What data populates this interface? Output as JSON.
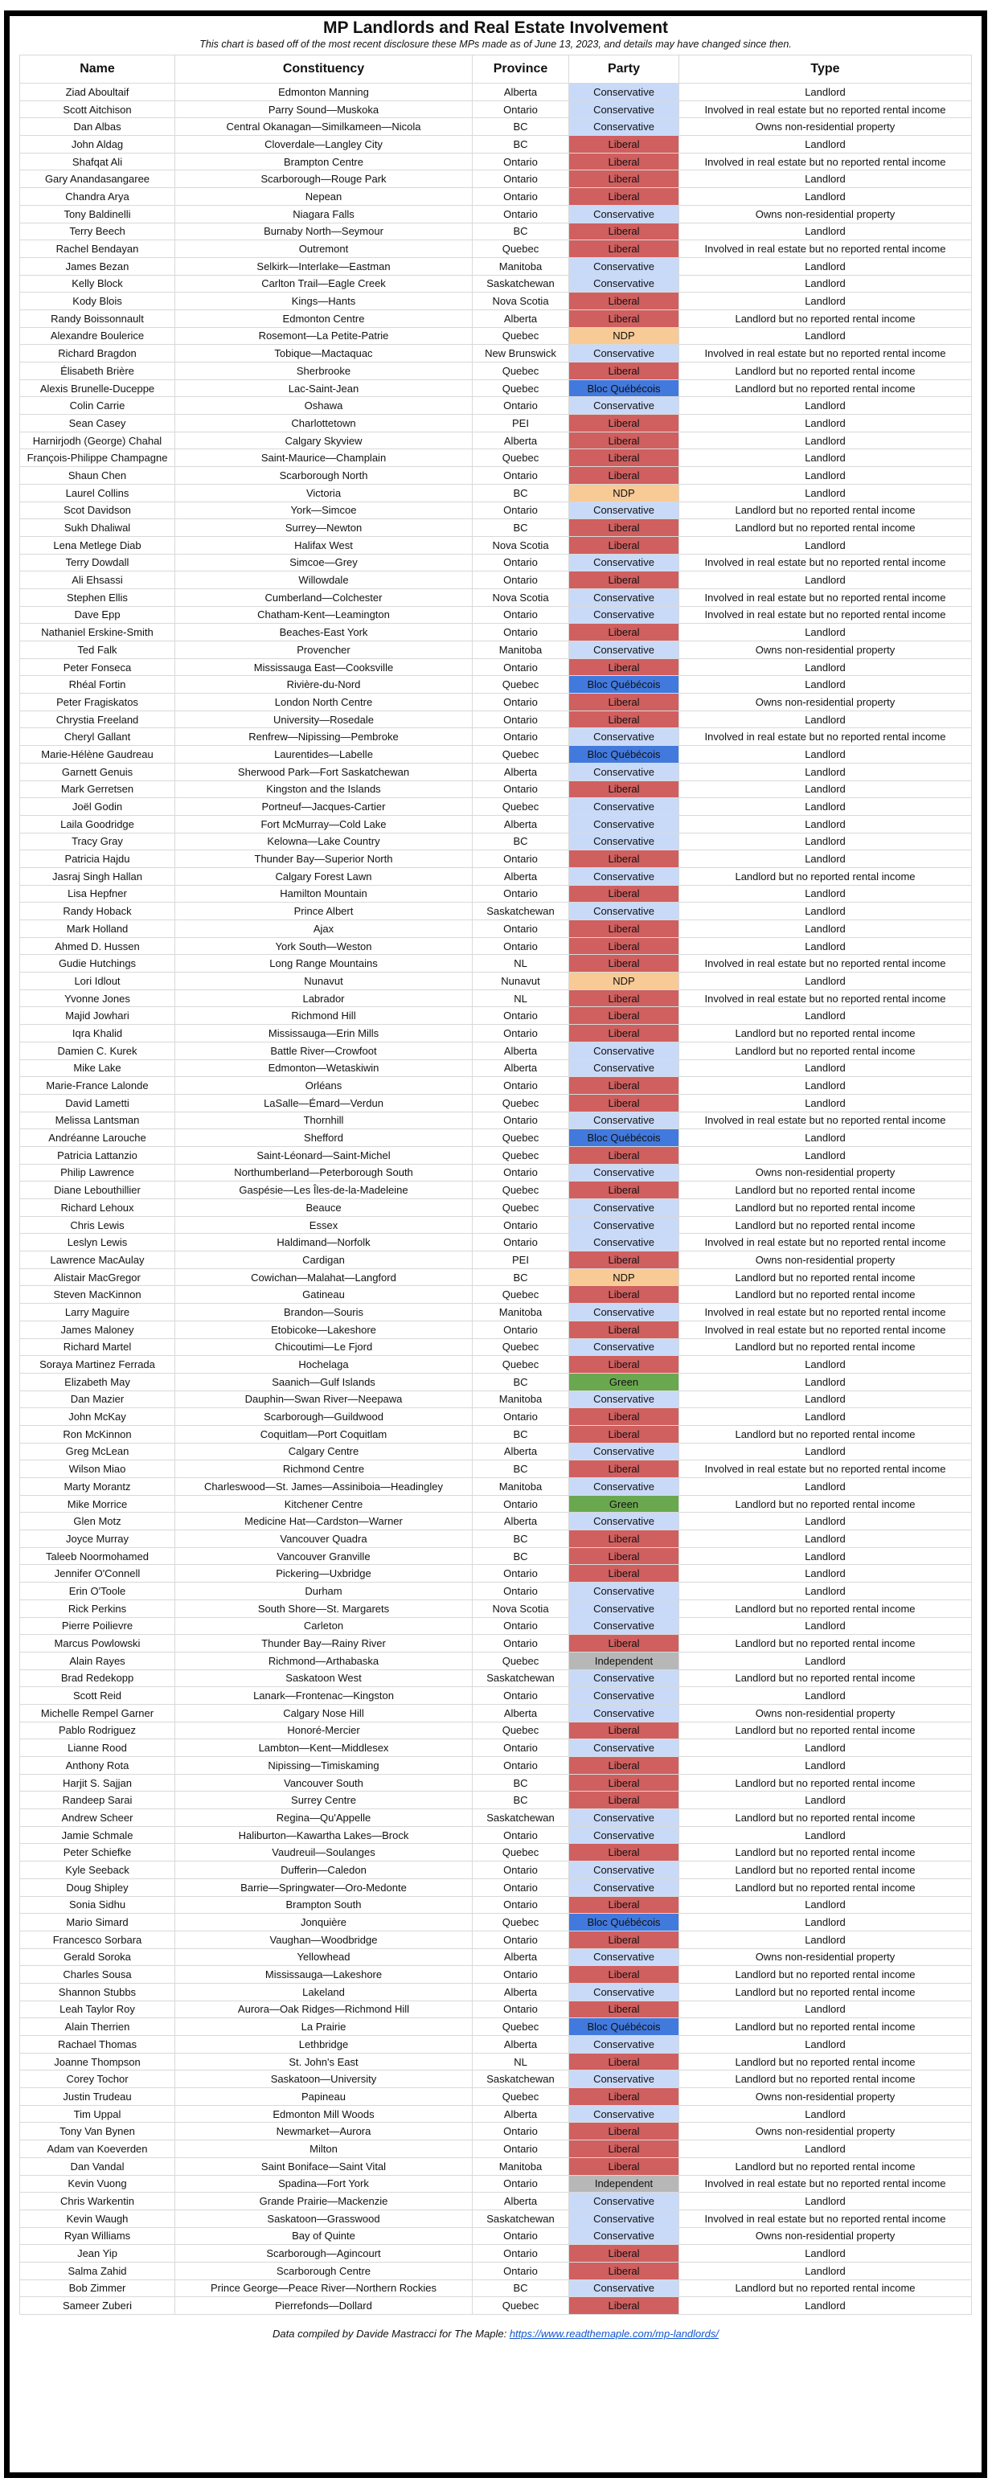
{
  "title": "MP Landlords and Real Estate Involvement",
  "subtitle": "This chart is based off of the most recent disclosure these MPs made as of June 13, 2023, and details may have changed since then.",
  "party_colors": {
    "Conservative": "#c9daf8",
    "Liberal": "#d05f5f",
    "NDP": "#f8ca96",
    "Bloc Québécois": "#4279dd",
    "Green": "#6aa84f",
    "Independent": "#b7b7b7"
  },
  "footer": {
    "prefix": "Data compiled by Davide Mastracci for The Maple: ",
    "link": "https://www.readthemaple.com/mp-landlords/"
  },
  "chart_data": {
    "type": "table",
    "title": "MP Landlords and Real Estate Involvement",
    "subtitle": "This chart is based off of the most recent disclosure these MPs made as of June 13, 2023, and details may have changed since then.",
    "columns": [
      "Name",
      "Constituency",
      "Province",
      "Party",
      "Type"
    ],
    "rows": [
      [
        "Ziad Aboultaif",
        "Edmonton Manning",
        "Alberta",
        "Conservative",
        "Landlord"
      ],
      [
        "Scott Aitchison",
        "Parry Sound—Muskoka",
        "Ontario",
        "Conservative",
        "Involved in real estate but no reported rental income"
      ],
      [
        "Dan Albas",
        "Central Okanagan—Similkameen—Nicola",
        "BC",
        "Conservative",
        "Owns non-residential property"
      ],
      [
        "John Aldag",
        "Cloverdale—Langley City",
        "BC",
        "Liberal",
        "Landlord"
      ],
      [
        "Shafqat Ali",
        "Brampton Centre",
        "Ontario",
        "Liberal",
        "Involved in real estate but no reported rental income"
      ],
      [
        "Gary Anandasangaree",
        "Scarborough—Rouge Park",
        "Ontario",
        "Liberal",
        "Landlord"
      ],
      [
        "Chandra Arya",
        "Nepean",
        "Ontario",
        "Liberal",
        "Landlord"
      ],
      [
        "Tony Baldinelli",
        "Niagara Falls",
        "Ontario",
        "Conservative",
        "Owns non-residential property"
      ],
      [
        "Terry Beech",
        "Burnaby North—Seymour",
        "BC",
        "Liberal",
        "Landlord"
      ],
      [
        "Rachel Bendayan",
        "Outremont",
        "Quebec",
        "Liberal",
        "Involved in real estate but no reported rental income"
      ],
      [
        "James Bezan",
        "Selkirk—Interlake—Eastman",
        "Manitoba",
        "Conservative",
        "Landlord"
      ],
      [
        "Kelly Block",
        "Carlton Trail—Eagle Creek",
        "Saskatchewan",
        "Conservative",
        "Landlord"
      ],
      [
        "Kody Blois",
        "Kings—Hants",
        "Nova Scotia",
        "Liberal",
        "Landlord"
      ],
      [
        "Randy Boissonnault",
        "Edmonton Centre",
        "Alberta",
        "Liberal",
        "Landlord but no reported rental income"
      ],
      [
        "Alexandre Boulerice",
        "Rosemont—La Petite-Patrie",
        "Quebec",
        "NDP",
        "Landlord"
      ],
      [
        "Richard Bragdon",
        "Tobique—Mactaquac",
        "New Brunswick",
        "Conservative",
        "Involved in real estate but no reported rental income"
      ],
      [
        "Élisabeth Brière",
        "Sherbrooke",
        "Quebec",
        "Liberal",
        "Landlord but no reported rental income"
      ],
      [
        "Alexis Brunelle-Duceppe",
        "Lac-Saint-Jean",
        "Quebec",
        "Bloc Québécois",
        "Landlord but no reported rental income"
      ],
      [
        "Colin Carrie",
        "Oshawa",
        "Ontario",
        "Conservative",
        "Landlord"
      ],
      [
        "Sean Casey",
        "Charlottetown",
        "PEI",
        "Liberal",
        "Landlord"
      ],
      [
        "Harnirjodh (George) Chahal",
        "Calgary Skyview",
        "Alberta",
        "Liberal",
        "Landlord"
      ],
      [
        "François-Philippe Champagne",
        "Saint-Maurice—Champlain",
        "Quebec",
        "Liberal",
        "Landlord"
      ],
      [
        "Shaun Chen",
        "Scarborough North",
        "Ontario",
        "Liberal",
        "Landlord"
      ],
      [
        "Laurel Collins",
        "Victoria",
        "BC",
        "NDP",
        "Landlord"
      ],
      [
        "Scot Davidson",
        "York—Simcoe",
        "Ontario",
        "Conservative",
        "Landlord but no reported rental income"
      ],
      [
        "Sukh Dhaliwal",
        "Surrey—Newton",
        "BC",
        "Liberal",
        "Landlord but no reported rental income"
      ],
      [
        "Lena Metlege Diab",
        "Halifax West",
        "Nova Scotia",
        "Liberal",
        "Landlord"
      ],
      [
        "Terry Dowdall",
        "Simcoe—Grey",
        "Ontario",
        "Conservative",
        "Involved in real estate but no reported rental income"
      ],
      [
        "Ali Ehsassi",
        "Willowdale",
        "Ontario",
        "Liberal",
        "Landlord"
      ],
      [
        "Stephen Ellis",
        "Cumberland—Colchester",
        "Nova Scotia",
        "Conservative",
        "Involved in real estate but no reported rental income"
      ],
      [
        "Dave Epp",
        "Chatham-Kent—Leamington",
        "Ontario",
        "Conservative",
        "Involved in real estate but no reported rental income"
      ],
      [
        "Nathaniel Erskine-Smith",
        "Beaches-East York",
        "Ontario",
        "Liberal",
        "Landlord"
      ],
      [
        "Ted Falk",
        "Provencher",
        "Manitoba",
        "Conservative",
        "Owns non-residential property"
      ],
      [
        "Peter Fonseca",
        "Mississauga East—Cooksville",
        "Ontario",
        "Liberal",
        "Landlord"
      ],
      [
        "Rhéal Fortin",
        "Rivière-du-Nord",
        "Quebec",
        "Bloc Québécois",
        "Landlord"
      ],
      [
        "Peter Fragiskatos",
        "London North Centre",
        "Ontario",
        "Liberal",
        "Owns non-residential property"
      ],
      [
        "Chrystia Freeland",
        "University—Rosedale",
        "Ontario",
        "Liberal",
        "Landlord"
      ],
      [
        "Cheryl Gallant",
        "Renfrew—Nipissing—Pembroke",
        "Ontario",
        "Conservative",
        "Involved in real estate but no reported rental income"
      ],
      [
        "Marie-Hélène Gaudreau",
        "Laurentides—Labelle",
        "Quebec",
        "Bloc Québécois",
        "Landlord"
      ],
      [
        "Garnett Genuis",
        "Sherwood Park—Fort Saskatchewan",
        "Alberta",
        "Conservative",
        "Landlord"
      ],
      [
        "Mark Gerretsen",
        "Kingston and the Islands",
        "Ontario",
        "Liberal",
        "Landlord"
      ],
      [
        "Joël Godin",
        "Portneuf—Jacques-Cartier",
        "Quebec",
        "Conservative",
        "Landlord"
      ],
      [
        "Laila Goodridge",
        "Fort McMurray—Cold Lake",
        "Alberta",
        "Conservative",
        "Landlord"
      ],
      [
        "Tracy Gray",
        "Kelowna—Lake Country",
        "BC",
        "Conservative",
        "Landlord"
      ],
      [
        "Patricia Hajdu",
        "Thunder Bay—Superior North",
        "Ontario",
        "Liberal",
        "Landlord"
      ],
      [
        "Jasraj Singh Hallan",
        "Calgary Forest Lawn",
        "Alberta",
        "Conservative",
        "Landlord but no reported rental income"
      ],
      [
        "Lisa Hepfner",
        "Hamilton Mountain",
        "Ontario",
        "Liberal",
        "Landlord"
      ],
      [
        "Randy Hoback",
        "Prince Albert",
        "Saskatchewan",
        "Conservative",
        "Landlord"
      ],
      [
        "Mark Holland",
        "Ajax",
        "Ontario",
        "Liberal",
        "Landlord"
      ],
      [
        "Ahmed D. Hussen",
        "York South—Weston",
        "Ontario",
        "Liberal",
        "Landlord"
      ],
      [
        "Gudie Hutchings",
        "Long Range Mountains",
        "NL",
        "Liberal",
        "Involved in real estate but no reported rental income"
      ],
      [
        "Lori Idlout",
        "Nunavut",
        "Nunavut",
        "NDP",
        "Landlord"
      ],
      [
        "Yvonne Jones",
        "Labrador",
        "NL",
        "Liberal",
        "Involved in real estate but no reported rental income"
      ],
      [
        "Majid Jowhari",
        "Richmond Hill",
        "Ontario",
        "Liberal",
        "Landlord"
      ],
      [
        "Iqra Khalid",
        "Mississauga—Erin Mills",
        "Ontario",
        "Liberal",
        "Landlord but no reported rental income"
      ],
      [
        "Damien C. Kurek",
        "Battle River—Crowfoot",
        "Alberta",
        "Conservative",
        "Landlord but no reported rental income"
      ],
      [
        "Mike Lake",
        "Edmonton—Wetaskiwin",
        "Alberta",
        "Conservative",
        "Landlord"
      ],
      [
        "Marie-France Lalonde",
        "Orléans",
        "Ontario",
        "Liberal",
        "Landlord"
      ],
      [
        "David Lametti",
        "LaSalle—Émard—Verdun",
        "Quebec",
        "Liberal",
        "Landlord"
      ],
      [
        "Melissa Lantsman",
        "Thornhill",
        "Ontario",
        "Conservative",
        "Involved in real estate but no reported rental income"
      ],
      [
        "Andréanne Larouche",
        "Shefford",
        "Quebec",
        "Bloc Québécois",
        "Landlord"
      ],
      [
        "Patricia Lattanzio",
        "Saint-Léonard—Saint-Michel",
        "Quebec",
        "Liberal",
        "Landlord"
      ],
      [
        "Philip Lawrence",
        "Northumberland—Peterborough South",
        "Ontario",
        "Conservative",
        "Owns non-residential property"
      ],
      [
        "Diane Lebouthillier",
        "Gaspésie—Les Îles-de-la-Madeleine",
        "Quebec",
        "Liberal",
        "Landlord but no reported rental income"
      ],
      [
        "Richard Lehoux",
        "Beauce",
        "Quebec",
        "Conservative",
        "Landlord but no reported rental income"
      ],
      [
        "Chris Lewis",
        "Essex",
        "Ontario",
        "Conservative",
        "Landlord but no reported rental income"
      ],
      [
        "Leslyn Lewis",
        "Haldimand—Norfolk",
        "Ontario",
        "Conservative",
        "Involved in real estate but no reported rental income"
      ],
      [
        "Lawrence MacAulay",
        "Cardigan",
        "PEI",
        "Liberal",
        "Owns non-residential property"
      ],
      [
        "Alistair MacGregor",
        "Cowichan—Malahat—Langford",
        "BC",
        "NDP",
        "Landlord but no reported rental income"
      ],
      [
        "Steven MacKinnon",
        "Gatineau",
        "Quebec",
        "Liberal",
        "Landlord but no reported rental income"
      ],
      [
        "Larry Maguire",
        "Brandon—Souris",
        "Manitoba",
        "Conservative",
        "Involved in real estate but no reported rental income"
      ],
      [
        "James Maloney",
        "Etobicoke—Lakeshore",
        "Ontario",
        "Liberal",
        "Involved in real estate but no reported rental income"
      ],
      [
        "Richard Martel",
        "Chicoutimi—Le Fjord",
        "Quebec",
        "Conservative",
        "Landlord but no reported rental income"
      ],
      [
        "Soraya Martinez Ferrada",
        "Hochelaga",
        "Quebec",
        "Liberal",
        "Landlord"
      ],
      [
        "Elizabeth May",
        "Saanich—Gulf Islands",
        "BC",
        "Green",
        "Landlord"
      ],
      [
        "Dan Mazier",
        "Dauphin—Swan River—Neepawa",
        "Manitoba",
        "Conservative",
        "Landlord"
      ],
      [
        "John McKay",
        "Scarborough—Guildwood",
        "Ontario",
        "Liberal",
        "Landlord"
      ],
      [
        "Ron McKinnon",
        "Coquitlam—Port Coquitlam",
        "BC",
        "Liberal",
        "Landlord but no reported rental income"
      ],
      [
        "Greg McLean",
        "Calgary Centre",
        "Alberta",
        "Conservative",
        "Landlord"
      ],
      [
        "Wilson Miao",
        "Richmond Centre",
        "BC",
        "Liberal",
        "Involved in real estate but no reported rental income"
      ],
      [
        "Marty Morantz",
        "Charleswood—St. James—Assiniboia—Headingley",
        "Manitoba",
        "Conservative",
        "Landlord"
      ],
      [
        "Mike Morrice",
        "Kitchener Centre",
        "Ontario",
        "Green",
        "Landlord but no reported rental income"
      ],
      [
        "Glen Motz",
        "Medicine Hat—Cardston—Warner",
        "Alberta",
        "Conservative",
        "Landlord"
      ],
      [
        "Joyce Murray",
        "Vancouver Quadra",
        "BC",
        "Liberal",
        "Landlord"
      ],
      [
        "Taleeb Noormohamed",
        "Vancouver Granville",
        "BC",
        "Liberal",
        "Landlord"
      ],
      [
        "Jennifer O'Connell",
        "Pickering—Uxbridge",
        "Ontario",
        "Liberal",
        "Landlord"
      ],
      [
        "Erin O'Toole",
        "Durham",
        "Ontario",
        "Conservative",
        "Landlord"
      ],
      [
        "Rick Perkins",
        "South Shore—St. Margarets",
        "Nova Scotia",
        "Conservative",
        "Landlord but no reported rental income"
      ],
      [
        "Pierre Poilievre",
        "Carleton",
        "Ontario",
        "Conservative",
        "Landlord"
      ],
      [
        "Marcus Powlowski",
        "Thunder Bay—Rainy River",
        "Ontario",
        "Liberal",
        "Landlord but no reported rental income"
      ],
      [
        "Alain Rayes",
        "Richmond—Arthabaska",
        "Quebec",
        "Independent",
        "Landlord"
      ],
      [
        "Brad Redekopp",
        "Saskatoon West",
        "Saskatchewan",
        "Conservative",
        "Landlord but no reported rental income"
      ],
      [
        "Scott Reid",
        "Lanark—Frontenac—Kingston",
        "Ontario",
        "Conservative",
        "Landlord"
      ],
      [
        "Michelle Rempel Garner",
        "Calgary Nose Hill",
        "Alberta",
        "Conservative",
        "Owns non-residential property"
      ],
      [
        "Pablo Rodriguez",
        "Honoré-Mercier",
        "Quebec",
        "Liberal",
        "Landlord but no reported rental income"
      ],
      [
        "Lianne Rood",
        "Lambton—Kent—Middlesex",
        "Ontario",
        "Conservative",
        "Landlord"
      ],
      [
        "Anthony Rota",
        "Nipissing—Timiskaming",
        "Ontario",
        "Liberal",
        "Landlord"
      ],
      [
        "Harjit S. Sajjan",
        "Vancouver South",
        "BC",
        "Liberal",
        "Landlord but no reported rental income"
      ],
      [
        "Randeep Sarai",
        "Surrey Centre",
        "BC",
        "Liberal",
        "Landlord"
      ],
      [
        "Andrew Scheer",
        "Regina—Qu'Appelle",
        "Saskatchewan",
        "Conservative",
        "Landlord but no reported rental income"
      ],
      [
        "Jamie Schmale",
        "Haliburton—Kawartha Lakes—Brock",
        "Ontario",
        "Conservative",
        "Landlord"
      ],
      [
        "Peter Schiefke",
        "Vaudreuil—Soulanges",
        "Quebec",
        "Liberal",
        "Landlord but no reported rental income"
      ],
      [
        "Kyle Seeback",
        "Dufferin—Caledon",
        "Ontario",
        "Conservative",
        "Landlord but no reported rental income"
      ],
      [
        "Doug Shipley",
        "Barrie—Springwater—Oro-Medonte",
        "Ontario",
        "Conservative",
        "Landlord but no reported rental income"
      ],
      [
        "Sonia Sidhu",
        "Brampton South",
        "Ontario",
        "Liberal",
        "Landlord"
      ],
      [
        "Mario Simard",
        "Jonquière",
        "Quebec",
        "Bloc Québécois",
        "Landlord"
      ],
      [
        "Francesco Sorbara",
        "Vaughan—Woodbridge",
        "Ontario",
        "Liberal",
        "Landlord"
      ],
      [
        "Gerald Soroka",
        "Yellowhead",
        "Alberta",
        "Conservative",
        "Owns non-residential property"
      ],
      [
        "Charles Sousa",
        "Mississauga—Lakeshore",
        "Ontario",
        "Liberal",
        "Landlord but no reported rental income"
      ],
      [
        "Shannon Stubbs",
        "Lakeland",
        "Alberta",
        "Conservative",
        "Landlord but no reported rental income"
      ],
      [
        "Leah Taylor Roy",
        "Aurora—Oak Ridges—Richmond Hill",
        "Ontario",
        "Liberal",
        "Landlord"
      ],
      [
        "Alain Therrien",
        "La Prairie",
        "Quebec",
        "Bloc Québécois",
        "Landlord but no reported rental income"
      ],
      [
        "Rachael Thomas",
        "Lethbridge",
        "Alberta",
        "Conservative",
        "Landlord"
      ],
      [
        "Joanne Thompson",
        "St. John's East",
        "NL",
        "Liberal",
        "Landlord but no reported rental income"
      ],
      [
        "Corey Tochor",
        "Saskatoon—University",
        "Saskatchewan",
        "Conservative",
        "Landlord but no reported rental income"
      ],
      [
        "Justin Trudeau",
        "Papineau",
        "Quebec",
        "Liberal",
        "Owns non-residential property"
      ],
      [
        "Tim Uppal",
        "Edmonton Mill Woods",
        "Alberta",
        "Conservative",
        "Landlord"
      ],
      [
        "Tony Van Bynen",
        "Newmarket—Aurora",
        "Ontario",
        "Liberal",
        "Owns non-residential property"
      ],
      [
        "Adam van Koeverden",
        "Milton",
        "Ontario",
        "Liberal",
        "Landlord"
      ],
      [
        "Dan Vandal",
        "Saint Boniface—Saint Vital",
        "Manitoba",
        "Liberal",
        "Landlord but no reported rental income"
      ],
      [
        "Kevin Vuong",
        "Spadina—Fort York",
        "Ontario",
        "Independent",
        "Involved in real estate but no reported rental income"
      ],
      [
        "Chris Warkentin",
        "Grande Prairie—Mackenzie",
        "Alberta",
        "Conservative",
        "Landlord"
      ],
      [
        "Kevin Waugh",
        "Saskatoon—Grasswood",
        "Saskatchewan",
        "Conservative",
        "Involved in real estate but no reported rental income"
      ],
      [
        "Ryan Williams",
        "Bay of Quinte",
        "Ontario",
        "Conservative",
        "Owns non-residential property"
      ],
      [
        "Jean Yip",
        "Scarborough—Agincourt",
        "Ontario",
        "Liberal",
        "Landlord"
      ],
      [
        "Salma Zahid",
        "Scarborough Centre",
        "Ontario",
        "Liberal",
        "Landlord"
      ],
      [
        "Bob Zimmer",
        "Prince George—Peace River—Northern Rockies",
        "BC",
        "Conservative",
        "Landlord but no reported rental income"
      ],
      [
        "Sameer Zuberi",
        "Pierrefonds—Dollard",
        "Quebec",
        "Liberal",
        "Landlord"
      ]
    ]
  }
}
